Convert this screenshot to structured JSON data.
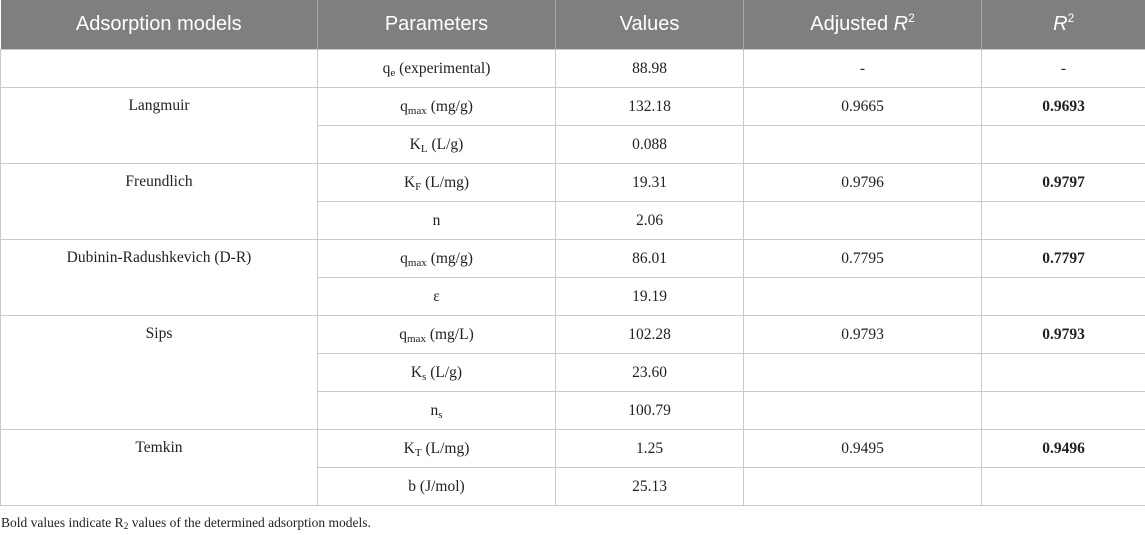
{
  "headers": {
    "model": "Adsorption models",
    "parameters": "Parameters",
    "values": "Values",
    "adjusted_prefix": "Adjusted ",
    "r_symbol": "R",
    "r_superscript": "2"
  },
  "rows": [
    {
      "model": "",
      "param": "q",
      "param_sub": "e",
      "param_unit": " (experimental)",
      "value": "88.98",
      "adj": "-",
      "r2": "-"
    },
    {
      "model": "Langmuir",
      "param": "q",
      "param_sub": "max",
      "param_unit": " (mg/g)",
      "value": "132.18",
      "adj": "0.9665",
      "r2": "0.9693"
    },
    {
      "model": "",
      "param": "K",
      "param_sub": "L",
      "param_unit": " (L/g)",
      "value": "0.088",
      "adj": "",
      "r2": ""
    },
    {
      "model": "Freundlich",
      "param": "K",
      "param_sub": "F",
      "param_unit": " (L/mg)",
      "value": "19.31",
      "adj": "0.9796",
      "r2": "0.9797"
    },
    {
      "model": "",
      "param": "n",
      "param_sub": "",
      "param_unit": "",
      "value": "2.06",
      "adj": "",
      "r2": ""
    },
    {
      "model": "Dubinin-Radushkevich (D-R)",
      "param": "q",
      "param_sub": "max",
      "param_unit": " (mg/g)",
      "value": "86.01",
      "adj": "0.7795",
      "r2": "0.7797"
    },
    {
      "model": "",
      "param": "ε",
      "param_sub": "",
      "param_unit": "",
      "value": "19.19",
      "adj": "",
      "r2": ""
    },
    {
      "model": "Sips",
      "param": "q",
      "param_sub": "max",
      "param_unit": " (mg/L)",
      "value": "102.28",
      "adj": "0.9793",
      "r2": "0.9793"
    },
    {
      "model": "",
      "param": "K",
      "param_sub": "s",
      "param_unit": " (L/g)",
      "value": "23.60",
      "adj": "",
      "r2": ""
    },
    {
      "model": "",
      "param": "n",
      "param_sub": "s",
      "param_unit": "",
      "value": "100.79",
      "adj": "",
      "r2": ""
    },
    {
      "model": "Temkin",
      "param": "K",
      "param_sub": "T",
      "param_unit": " (L/mg)",
      "value": "1.25",
      "adj": "0.9495",
      "r2": "0.9496"
    },
    {
      "model": "",
      "param": "b",
      "param_sub": "",
      "param_unit": " (J/mol)",
      "value": "25.13",
      "adj": "",
      "r2": ""
    }
  ],
  "footnote": {
    "prefix": "Bold values indicate R",
    "sub": "2",
    "suffix": " values of the determined adsorption models."
  },
  "colors": {
    "header_bg": "#7f7f7f",
    "header_text": "#ffffff",
    "grid": "#c9c9c9"
  }
}
